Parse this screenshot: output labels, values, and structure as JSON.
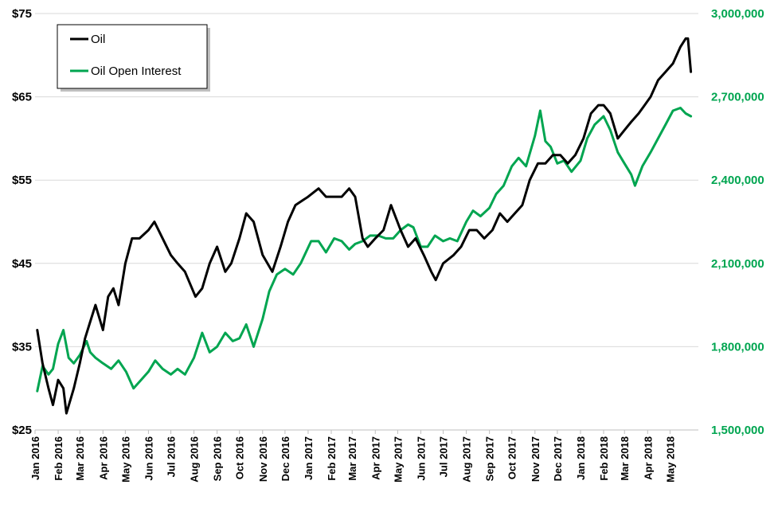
{
  "chart_data": {
    "type": "line",
    "title": "",
    "xlabel": "",
    "ylabel": "",
    "x_tick_labels": [
      "Jan 2016",
      "Feb 2016",
      "Mar 2016",
      "Apr 2016",
      "May 2016",
      "Jun 2016",
      "Jul 2016",
      "Aug 2016",
      "Sep 2016",
      "Oct 2016",
      "Nov 2016",
      "Dec 2016",
      "Jan 2017",
      "Feb 2017",
      "Mar 2017",
      "Apr 2017",
      "May 2017",
      "Jun 2017",
      "Jul 2017",
      "Aug 2017",
      "Sep 2017",
      "Oct 2017",
      "Nov 2017",
      "Dec 2017",
      "Jan 2018",
      "Feb 2018",
      "Mar 2018",
      "Apr 2018",
      "May 2018"
    ],
    "y_left": {
      "range": [
        25,
        75
      ],
      "ticks": [
        25,
        35,
        45,
        55,
        65,
        75
      ],
      "tick_labels": [
        "$25",
        "$35",
        "$45",
        "$55",
        "$65",
        "$75"
      ]
    },
    "y_right": {
      "range": [
        1500000,
        3000000
      ],
      "ticks": [
        1500000,
        1800000,
        2100000,
        2400000,
        2700000,
        3000000
      ],
      "tick_labels": [
        "1,500,000",
        "1,800,000",
        "2,100,000",
        "2,400,000",
        "2,700,000",
        "3,000,000"
      ],
      "color": "#00a550"
    },
    "grid": true,
    "legend": {
      "placement": "top-left",
      "entries": [
        "Oil",
        "Oil Open Interest"
      ]
    },
    "series": [
      {
        "name": "Oil",
        "axis": "left",
        "color": "#000000",
        "x": [
          "2016-01-04",
          "2016-01-11",
          "2016-01-19",
          "2016-01-25",
          "2016-02-01",
          "2016-02-08",
          "2016-02-12",
          "2016-02-22",
          "2016-03-01",
          "2016-03-08",
          "2016-03-15",
          "2016-03-22",
          "2016-04-01",
          "2016-04-08",
          "2016-04-15",
          "2016-04-22",
          "2016-05-01",
          "2016-05-10",
          "2016-05-20",
          "2016-06-01",
          "2016-06-09",
          "2016-06-20",
          "2016-07-01",
          "2016-07-10",
          "2016-07-20",
          "2016-08-03",
          "2016-08-12",
          "2016-08-22",
          "2016-09-01",
          "2016-09-12",
          "2016-09-20",
          "2016-10-01",
          "2016-10-10",
          "2016-10-20",
          "2016-11-01",
          "2016-11-14",
          "2016-11-25",
          "2016-12-05",
          "2016-12-15",
          "2017-01-01",
          "2017-01-15",
          "2017-01-25",
          "2017-02-05",
          "2017-02-15",
          "2017-02-25",
          "2017-03-05",
          "2017-03-15",
          "2017-03-22",
          "2017-04-01",
          "2017-04-12",
          "2017-04-22",
          "2017-05-05",
          "2017-05-15",
          "2017-05-25",
          "2017-06-05",
          "2017-06-15",
          "2017-06-21",
          "2017-07-01",
          "2017-07-15",
          "2017-07-25",
          "2017-08-05",
          "2017-08-15",
          "2017-08-25",
          "2017-09-05",
          "2017-09-15",
          "2017-09-25",
          "2017-10-05",
          "2017-10-15",
          "2017-10-25",
          "2017-11-05",
          "2017-11-15",
          "2017-11-25",
          "2017-12-05",
          "2017-12-15",
          "2017-12-25",
          "2018-01-05",
          "2018-01-15",
          "2018-01-25",
          "2018-02-01",
          "2018-02-10",
          "2018-02-20",
          "2018-03-01",
          "2018-03-10",
          "2018-03-20",
          "2018-03-28",
          "2018-04-05",
          "2018-04-15",
          "2018-04-25",
          "2018-05-05",
          "2018-05-15",
          "2018-05-22",
          "2018-05-25",
          "2018-05-29"
        ],
        "values": [
          37,
          33,
          30,
          28,
          31,
          30,
          27,
          30,
          33,
          36,
          38,
          40,
          37,
          41,
          42,
          40,
          45,
          48,
          48,
          49,
          50,
          48,
          46,
          45,
          44,
          41,
          42,
          45,
          47,
          44,
          45,
          48,
          51,
          50,
          46,
          44,
          47,
          50,
          52,
          53,
          54,
          53,
          53,
          53,
          54,
          53,
          48,
          47,
          48,
          49,
          52,
          49,
          47,
          48,
          46,
          44,
          43,
          45,
          46,
          47,
          49,
          49,
          48,
          49,
          51,
          50,
          51,
          52,
          55,
          57,
          57,
          58,
          58,
          57,
          58,
          60,
          63,
          64,
          64,
          63,
          60,
          61,
          62,
          63,
          64,
          65,
          67,
          68,
          69,
          71,
          72,
          72,
          68
        ]
      },
      {
        "name": "Oil Open Interest",
        "axis": "right",
        "color": "#00a550",
        "x": [
          "2016-01-04",
          "2016-01-11",
          "2016-01-19",
          "2016-01-25",
          "2016-02-01",
          "2016-02-08",
          "2016-02-15",
          "2016-02-22",
          "2016-03-01",
          "2016-03-10",
          "2016-03-15",
          "2016-03-22",
          "2016-04-01",
          "2016-04-12",
          "2016-04-22",
          "2016-05-02",
          "2016-05-12",
          "2016-05-22",
          "2016-06-01",
          "2016-06-10",
          "2016-06-20",
          "2016-07-01",
          "2016-07-10",
          "2016-07-20",
          "2016-08-01",
          "2016-08-12",
          "2016-08-22",
          "2016-09-01",
          "2016-09-12",
          "2016-09-22",
          "2016-10-01",
          "2016-10-10",
          "2016-10-20",
          "2016-11-01",
          "2016-11-10",
          "2016-11-20",
          "2016-12-01",
          "2016-12-12",
          "2016-12-22",
          "2017-01-05",
          "2017-01-15",
          "2017-01-25",
          "2017-02-05",
          "2017-02-15",
          "2017-02-25",
          "2017-03-05",
          "2017-03-15",
          "2017-03-25",
          "2017-04-05",
          "2017-04-15",
          "2017-04-25",
          "2017-05-05",
          "2017-05-15",
          "2017-05-22",
          "2017-06-01",
          "2017-06-10",
          "2017-06-20",
          "2017-07-01",
          "2017-07-10",
          "2017-07-20",
          "2017-08-01",
          "2017-08-10",
          "2017-08-20",
          "2017-09-01",
          "2017-09-10",
          "2017-09-20",
          "2017-10-01",
          "2017-10-10",
          "2017-10-20",
          "2017-11-01",
          "2017-11-08",
          "2017-11-15",
          "2017-11-22",
          "2017-12-01",
          "2017-12-10",
          "2017-12-20",
          "2018-01-01",
          "2018-01-10",
          "2018-01-20",
          "2018-02-01",
          "2018-02-10",
          "2018-02-20",
          "2018-03-01",
          "2018-03-10",
          "2018-03-15",
          "2018-03-25",
          "2018-04-05",
          "2018-04-15",
          "2018-04-25",
          "2018-05-05",
          "2018-05-15",
          "2018-05-22",
          "2018-05-29"
        ],
        "values": [
          1640000,
          1730000,
          1700000,
          1720000,
          1810000,
          1860000,
          1760000,
          1740000,
          1770000,
          1820000,
          1780000,
          1760000,
          1740000,
          1720000,
          1750000,
          1710000,
          1650000,
          1680000,
          1710000,
          1750000,
          1720000,
          1700000,
          1720000,
          1700000,
          1760000,
          1850000,
          1780000,
          1800000,
          1850000,
          1820000,
          1830000,
          1880000,
          1800000,
          1900000,
          2000000,
          2060000,
          2080000,
          2060000,
          2100000,
          2180000,
          2180000,
          2140000,
          2190000,
          2180000,
          2150000,
          2170000,
          2180000,
          2200000,
          2200000,
          2190000,
          2190000,
          2220000,
          2240000,
          2230000,
          2160000,
          2160000,
          2200000,
          2180000,
          2190000,
          2180000,
          2250000,
          2290000,
          2270000,
          2300000,
          2350000,
          2380000,
          2450000,
          2480000,
          2450000,
          2560000,
          2650000,
          2540000,
          2520000,
          2460000,
          2470000,
          2430000,
          2470000,
          2550000,
          2600000,
          2630000,
          2580000,
          2500000,
          2460000,
          2420000,
          2380000,
          2450000,
          2500000,
          2550000,
          2600000,
          2650000,
          2660000,
          2640000,
          2630000
        ]
      }
    ]
  }
}
